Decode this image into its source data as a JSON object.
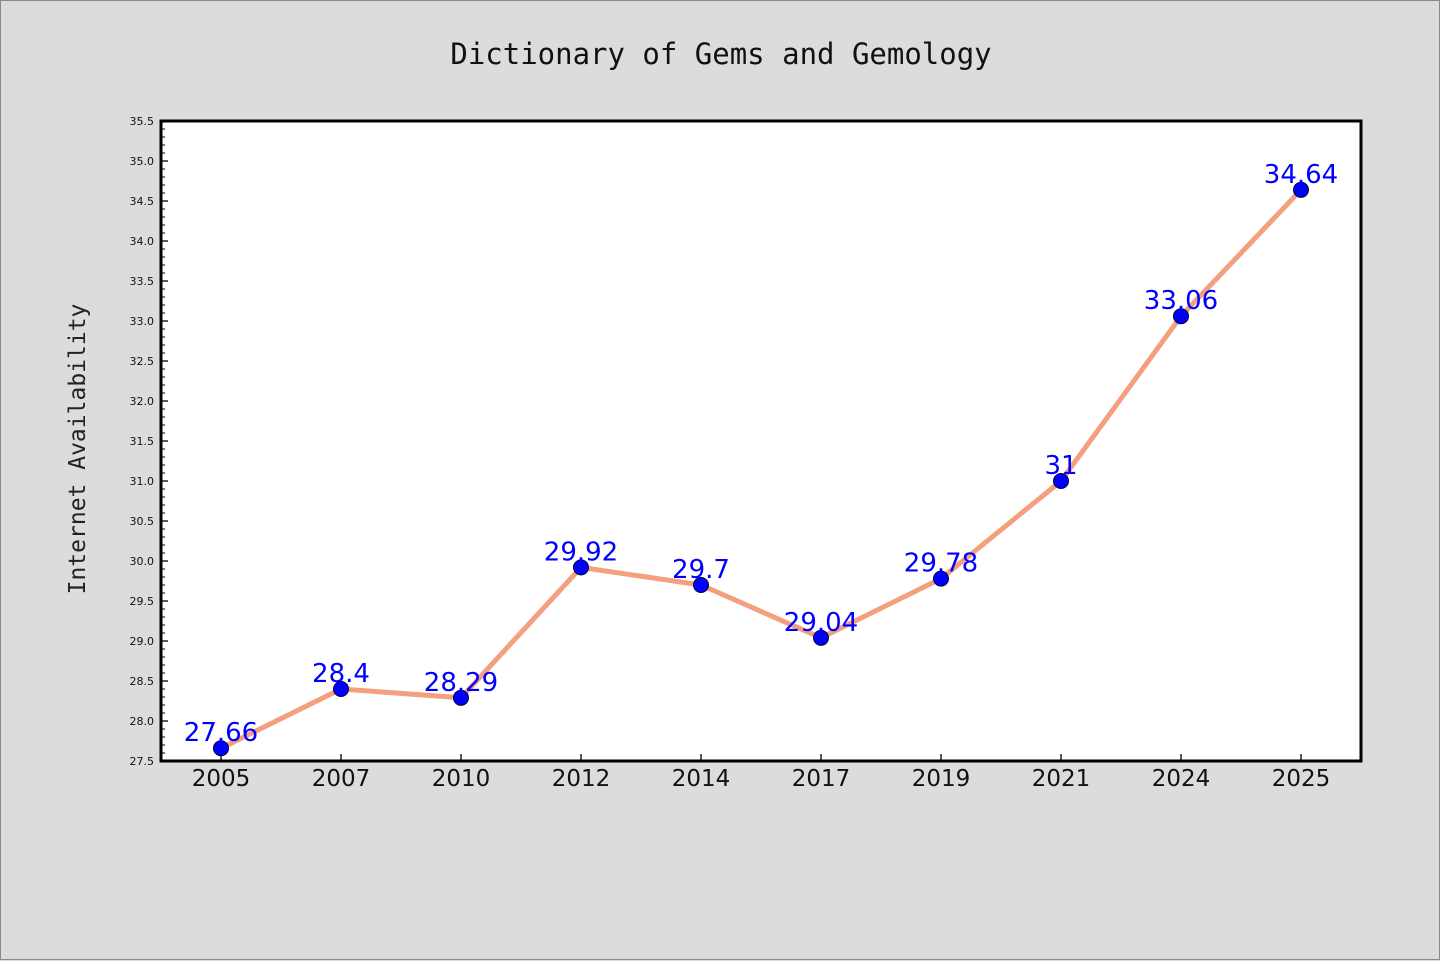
{
  "chart_data": {
    "type": "line",
    "title": "Dictionary of Gems and Gemology",
    "xlabel": "",
    "ylabel": "Internet Availability",
    "categories": [
      "2005",
      "2007",
      "2010",
      "2012",
      "2014",
      "2017",
      "2019",
      "2021",
      "2024",
      "2025"
    ],
    "series": [
      {
        "values": [
          27.66,
          28.4,
          28.29,
          29.92,
          29.7,
          29.04,
          29.78,
          31,
          33.06,
          34.64
        ],
        "labels": [
          "27.66",
          "28.4",
          "28.29",
          "29.92",
          "29.7",
          "29.04",
          "29.78",
          "31",
          "33.06",
          "34.64"
        ]
      }
    ],
    "ylim": [
      27.5,
      35.5
    ],
    "yticks": [
      "27.5",
      "28.0",
      "28.5",
      "29.0",
      "29.5",
      "30.0",
      "30.5",
      "31.0",
      "31.5",
      "32.0",
      "32.5",
      "33.0",
      "33.5",
      "34.0",
      "34.5",
      "35.0",
      "35.5"
    ],
    "grid": false,
    "legend": "none",
    "colors": {
      "background": "#dcdcdc",
      "plot_area": "#ffffff",
      "line": "#f4a07e",
      "marker": "#0000ff",
      "data_label": "#0000ff"
    }
  }
}
